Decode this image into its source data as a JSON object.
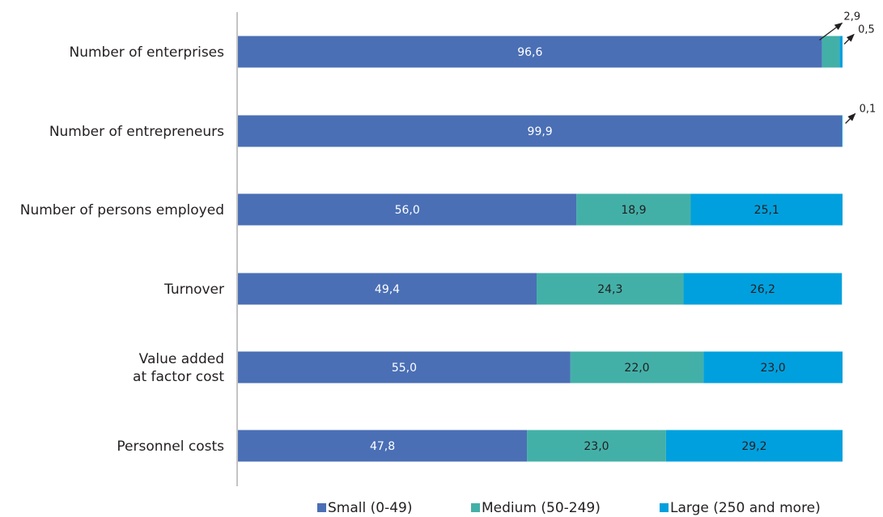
{
  "chart_data": {
    "type": "bar",
    "orientation": "horizontal",
    "stacked": true,
    "categories": [
      [
        "Number of enterprises"
      ],
      [
        "Number of entrepreneurs"
      ],
      [
        "Number of persons employed"
      ],
      [
        "Turnover"
      ],
      [
        "Value added",
        "at factor cost"
      ],
      [
        "Personnel costs"
      ]
    ],
    "series": [
      {
        "name": "Small (0-49)",
        "color": "#4a6fb5",
        "values": [
          96.6,
          99.9,
          56.0,
          49.4,
          55.0,
          47.8
        ],
        "labels": [
          "96,6",
          "99,9",
          "56,0",
          "49,4",
          "55,0",
          "47,8"
        ]
      },
      {
        "name": "Medium (50-249)",
        "color": "#43b0a8",
        "values": [
          2.9,
          0.0,
          18.9,
          24.3,
          22.0,
          23.0
        ],
        "labels": [
          "2,9",
          "",
          "18,9",
          "24,3",
          "22,0",
          "23,0"
        ]
      },
      {
        "name": "Large (250 and more)",
        "color": "#00a0de",
        "values": [
          0.5,
          0.1,
          25.1,
          26.2,
          23.0,
          29.2
        ],
        "labels": [
          "0,5",
          "0,1",
          "25,1",
          "26,2",
          "23,0",
          "29,2"
        ]
      }
    ],
    "xlim": [
      0,
      100
    ],
    "grid": false,
    "legend_position": "bottom"
  }
}
